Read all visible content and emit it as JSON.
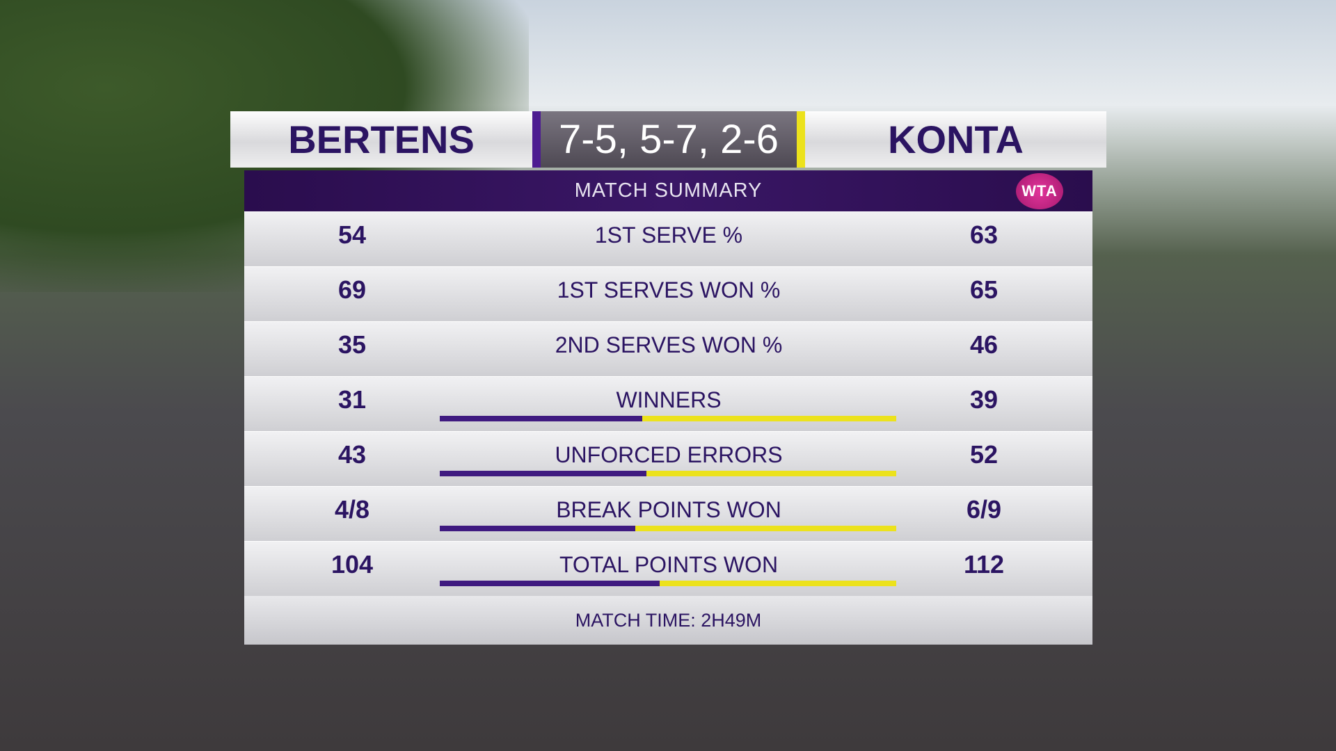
{
  "header": {
    "player_left": "BERTENS",
    "score": "7-5, 5-7, 2-6",
    "player_right": "KONTA"
  },
  "panel": {
    "title": "MATCH SUMMARY",
    "logo": "WTA",
    "footer": "MATCH TIME: 2H49M",
    "colors": {
      "left": "#3f1a80",
      "right": "#ece21c"
    },
    "rows": [
      {
        "left": 54,
        "label": "1ST SERVE %",
        "right": 63,
        "bar": false
      },
      {
        "left": 69,
        "label": "1ST SERVES WON %",
        "right": 65,
        "bar": false
      },
      {
        "left": 35,
        "label": "2ND SERVES WON %",
        "right": 46,
        "bar": false
      },
      {
        "left": 31,
        "label": "WINNERS",
        "right": 39,
        "bar": true
      },
      {
        "left": 43,
        "label": "UNFORCED ERRORS",
        "right": 52,
        "bar": true
      },
      {
        "left": "4/8",
        "label": "BREAK POINTS WON",
        "right": "6/9",
        "bar": true
      },
      {
        "left": 104,
        "label": "TOTAL POINTS WON",
        "right": 112,
        "bar": true
      }
    ]
  }
}
